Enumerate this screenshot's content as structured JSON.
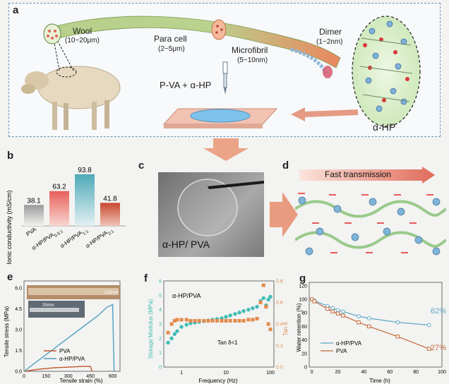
{
  "panels": {
    "a": {
      "label": "a",
      "wool": "Wool",
      "wool_size": "(10~20μm)",
      "para_cell": "Para cell",
      "para_cell_size": "(2~5μm)",
      "microfibril": "Microfibril",
      "microfibril_size": "(5~10nm)",
      "dimer": "Dimer",
      "dimer_size": "(1~2nm)",
      "mix": "P-VA + α-HP",
      "ahp": "α-HP"
    },
    "b": {
      "label": "b",
      "chart_data": {
        "type": "bar",
        "categories": [
          "PVA",
          "α-HP/PVA0.5:1",
          "α-HP/PVA1:1",
          "α-HP/PVA2:1"
        ],
        "category_labels": [
          {
            "main": "PVA",
            "sub": ""
          },
          {
            "main": "α-HP/PVA",
            "sub": "0.5:1"
          },
          {
            "main": "α-HP/PVA",
            "sub": "1:1"
          },
          {
            "main": "α-HP/PVA",
            "sub": "2:1"
          }
        ],
        "values": [
          38.1,
          63.2,
          93.8,
          41.8
        ],
        "value_labels": [
          "38.1",
          "63.2",
          "93.8",
          "41.8"
        ],
        "colors": [
          "#9a9a9a",
          "#e8605b",
          "#4faab8",
          "#c9472f"
        ],
        "ylabel": "Ionic conductivity (mS/cm)",
        "ylim": [
          0,
          100
        ]
      }
    },
    "c": {
      "label": "c",
      "caption": "α-HP/ PVA"
    },
    "d": {
      "label": "d",
      "arrow_text": "Fast transmission"
    },
    "e": {
      "label": "e",
      "inset_scale_1": "125mm",
      "inset_scale_2": "25mm",
      "chart_data": {
        "type": "line",
        "xlabel": "Tensile strain (%)",
        "ylabel": "Tensile stress (MPa)",
        "xlim": [
          0,
          650
        ],
        "ylim": [
          0,
          6.5
        ],
        "xticks": [
          0,
          150,
          300,
          450,
          600
        ],
        "yticks": [
          0.0,
          1.5,
          3.0,
          4.5,
          6.0
        ],
        "series": [
          {
            "name": "PVA",
            "color": "#c0562f",
            "x": [
              0,
              100,
              200,
              300,
              400,
              450,
              460
            ],
            "y": [
              0,
              0.15,
              0.25,
              0.3,
              0.35,
              0.35,
              0
            ]
          },
          {
            "name": "α-HP/PVA",
            "color": "#4e9fc0",
            "x": [
              0,
              100,
              200,
              300,
              400,
              500,
              560,
              600,
              610
            ],
            "y": [
              0,
              0.8,
              1.6,
              2.4,
              3.2,
              4.0,
              4.6,
              4.8,
              0
            ]
          }
        ]
      }
    },
    "f": {
      "label": "f",
      "title": "α-HP/PVA",
      "annotation": "Tan δ<1",
      "chart_data": {
        "type": "scatter",
        "xscale": "log",
        "xlabel": "Frequency (Hz)",
        "ylabel": "Storage Modulus (MPa)",
        "ylabel2": "Tan δ",
        "xlim": [
          0.4,
          120
        ],
        "ylim": [
          0,
          6
        ],
        "ylim2": [
          0.0,
          0.8
        ],
        "xticks": [
          1,
          10,
          100
        ],
        "xtick_labels": [
          "1",
          "10",
          "100"
        ],
        "yticks": [
          0,
          1,
          2,
          3,
          4,
          5,
          6
        ],
        "yticks2": [
          0.0,
          0.2,
          0.4,
          0.6,
          0.8
        ],
        "series": [
          {
            "name": "Storage Modulus",
            "color": "#3fbcb4",
            "axis": "left",
            "x": [
              0.5,
              0.6,
              0.7,
              0.8,
              1,
              1.3,
              1.6,
              2,
              2.5,
              3.2,
              4,
              5,
              6.3,
              8,
              10,
              12.5,
              16,
              20,
              25,
              32,
              40,
              50,
              60,
              70,
              80,
              90,
              100
            ],
            "y": [
              1.7,
              2.0,
              2.3,
              2.5,
              2.8,
              2.95,
              3.05,
              3.1,
              3.15,
              3.2,
              3.25,
              3.3,
              3.35,
              3.4,
              3.5,
              3.6,
              3.7,
              3.8,
              3.9,
              4.0,
              4.1,
              4.2,
              4.6,
              4.8,
              4.3,
              4.7,
              4.9
            ]
          },
          {
            "name": "Tan δ",
            "color": "#e38a4c",
            "axis": "right",
            "x": [
              0.5,
              0.6,
              0.7,
              0.8,
              1,
              1.3,
              1.6,
              2,
              2.5,
              3.2,
              4,
              5,
              6.3,
              8,
              10,
              12.5,
              16,
              20,
              25,
              32,
              40,
              50,
              60,
              70,
              80,
              90,
              100
            ],
            "y": [
              0.32,
              0.4,
              0.43,
              0.44,
              0.44,
              0.44,
              0.43,
              0.43,
              0.43,
              0.43,
              0.43,
              0.43,
              0.43,
              0.43,
              0.43,
              0.43,
              0.43,
              0.43,
              0.43,
              0.44,
              0.44,
              0.45,
              0.6,
              0.76,
              0.56,
              0.4,
              0.35
            ]
          }
        ]
      }
    },
    "g": {
      "label": "g",
      "pct_high": "62%",
      "pct_low": "27%",
      "chart_data": {
        "type": "line",
        "xlabel": "Time (h)",
        "ylabel": "Water retention (%)",
        "xlim": [
          -2,
          100
        ],
        "ylim": [
          0,
          125
        ],
        "xticks": [
          0,
          20,
          40,
          60,
          80,
          100
        ],
        "yticks": [
          0,
          20,
          40,
          60,
          80,
          100,
          120
        ],
        "series": [
          {
            "name": "α-HP/PVA",
            "color": "#5ea7c6",
            "x": [
              0,
              2,
              12,
              16,
              20,
              24,
              36,
              44,
              66,
              90
            ],
            "y": [
              100,
              98,
              90,
              87,
              84,
              82,
              75,
              72,
              66,
              62
            ]
          },
          {
            "name": "PVA",
            "color": "#c26a3e",
            "x": [
              0,
              2,
              12,
              16,
              20,
              24,
              36,
              44,
              66,
              90
            ],
            "y": [
              100,
              97,
              86,
              82,
              79,
              76,
              66,
              60,
              45,
              27
            ]
          }
        ]
      }
    }
  }
}
